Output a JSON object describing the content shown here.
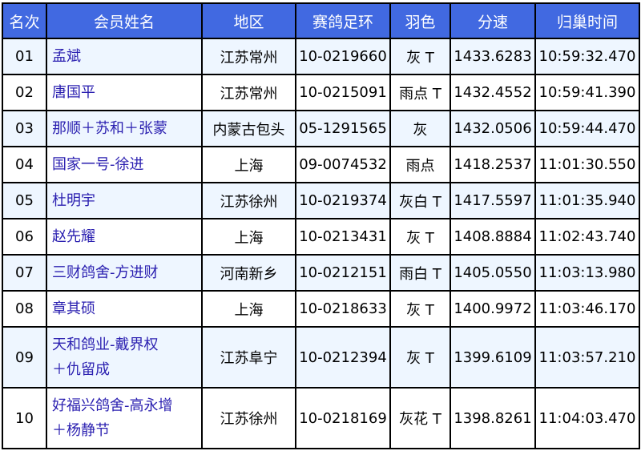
{
  "colors": {
    "header_bg": "#4169e1",
    "odd_row_bg": "#eef6ff",
    "name_text": "#2a1fb0"
  },
  "headers": [
    "名次",
    "会员姓名",
    "地区",
    "赛鸽足环",
    "羽色",
    "分速",
    "归巢时间"
  ],
  "rows": [
    {
      "rank": "01",
      "name": [
        "孟斌"
      ],
      "region": "江苏常州",
      "ring": "10-0219660",
      "color": "灰 T",
      "speed": "1433.6283",
      "time": "10:59:32.470"
    },
    {
      "rank": "02",
      "name": [
        "唐国平"
      ],
      "region": "江苏常州",
      "ring": "10-0215091",
      "color": "雨点 T",
      "speed": "1432.4552",
      "time": "10:59:41.390"
    },
    {
      "rank": "03",
      "name": [
        "那顺＋苏和＋张蒙"
      ],
      "region": "内蒙古包头",
      "ring": "05-1291565",
      "color": "灰",
      "speed": "1432.0506",
      "time": "10:59:44.470"
    },
    {
      "rank": "04",
      "name": [
        "国家一号-徐进"
      ],
      "region": "上海",
      "ring": "09-0074532",
      "color": "雨点",
      "speed": "1418.2537",
      "time": "11:01:30.550"
    },
    {
      "rank": "05",
      "name": [
        "杜明宇"
      ],
      "region": "江苏徐州",
      "ring": "10-0219374",
      "color": "灰白 T",
      "speed": "1417.5597",
      "time": "11:01:35.940"
    },
    {
      "rank": "06",
      "name": [
        "赵先耀"
      ],
      "region": "上海",
      "ring": "10-0213431",
      "color": "灰 T",
      "speed": "1408.8884",
      "time": "11:02:43.740"
    },
    {
      "rank": "07",
      "name": [
        "三财鸽舍-方进财"
      ],
      "region": "河南新乡",
      "ring": "10-0212151",
      "color": "雨白 T",
      "speed": "1405.0550",
      "time": "11:03:13.980"
    },
    {
      "rank": "08",
      "name": [
        "章其硕"
      ],
      "region": "上海",
      "ring": "10-0218633",
      "color": "灰 T",
      "speed": "1400.9972",
      "time": "11:03:46.170"
    },
    {
      "rank": "09",
      "name": [
        "天和鸽业-戴界权",
        "＋仇留成"
      ],
      "region": "江苏阜宁",
      "ring": "10-0212394",
      "color": "灰 T",
      "speed": "1399.6109",
      "time": "11:03:57.210"
    },
    {
      "rank": "10",
      "name": [
        "好福兴鸽舍-高永增",
        "＋杨静节"
      ],
      "region": "江苏徐州",
      "ring": "10-0218169",
      "color": "灰花 T",
      "speed": "1398.8261",
      "time": "11:04:03.470"
    }
  ]
}
